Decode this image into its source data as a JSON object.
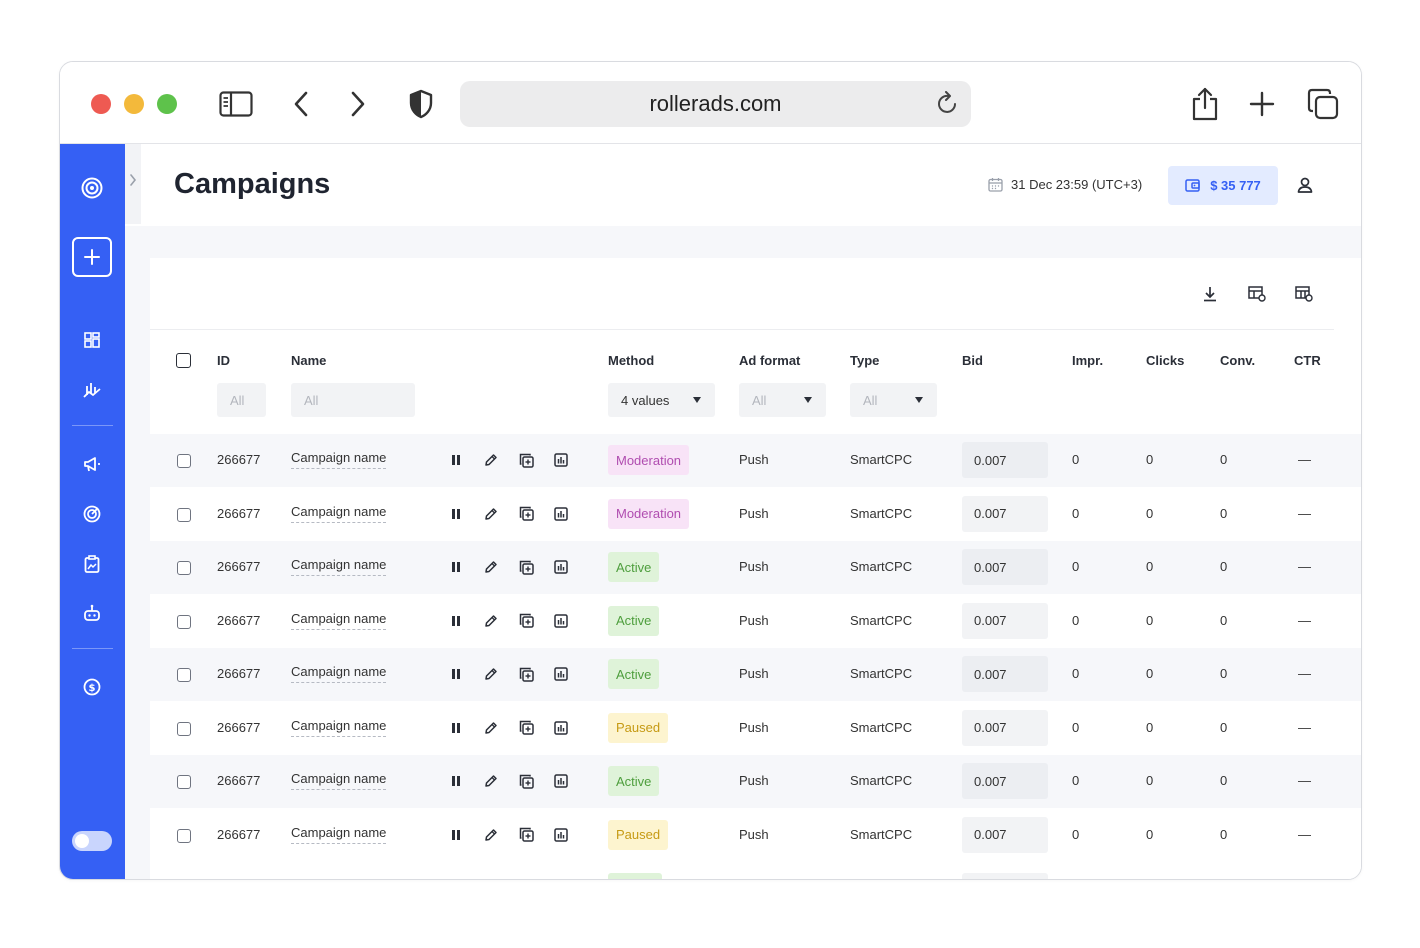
{
  "browser": {
    "url": "rollerads.com"
  },
  "page": {
    "title": "Campaigns"
  },
  "header": {
    "datetime": "31 Dec 23:59 (UTC+3)",
    "balance": "$ 35 777"
  },
  "columns": {
    "id": "ID",
    "name": "Name",
    "method": "Method",
    "ad_format": "Ad format",
    "type": "Type",
    "bid": "Bid",
    "impr": "Impr.",
    "clicks": "Clicks",
    "conv": "Conv.",
    "ctr": "CTR"
  },
  "filters": {
    "id": "All",
    "name": "All",
    "method": "4 values",
    "ad_format": "All",
    "type": "All"
  },
  "status_colors": {
    "Moderation": {
      "bg": "#f8e3f7",
      "fg": "#b04db0"
    },
    "Active": {
      "bg": "#dff3d9",
      "fg": "#4e9e3d"
    },
    "Paused": {
      "bg": "#fdf4cf",
      "fg": "#c69a14"
    }
  },
  "accent_color": "#3560f4",
  "rows": [
    {
      "id": "266677",
      "name": "Campaign name",
      "status": "Moderation",
      "ad_format": "Push",
      "type": "SmartCPC",
      "bid": "0.007",
      "impr": "0",
      "clicks": "0",
      "conv": "0",
      "ctr": "—"
    },
    {
      "id": "266677",
      "name": "Campaign name",
      "status": "Moderation",
      "ad_format": "Push",
      "type": "SmartCPC",
      "bid": "0.007",
      "impr": "0",
      "clicks": "0",
      "conv": "0",
      "ctr": "—"
    },
    {
      "id": "266677",
      "name": "Campaign name",
      "status": "Active",
      "ad_format": "Push",
      "type": "SmartCPC",
      "bid": "0.007",
      "impr": "0",
      "clicks": "0",
      "conv": "0",
      "ctr": "—"
    },
    {
      "id": "266677",
      "name": "Campaign name",
      "status": "Active",
      "ad_format": "Push",
      "type": "SmartCPC",
      "bid": "0.007",
      "impr": "0",
      "clicks": "0",
      "conv": "0",
      "ctr": "—"
    },
    {
      "id": "266677",
      "name": "Campaign name",
      "status": "Active",
      "ad_format": "Push",
      "type": "SmartCPC",
      "bid": "0.007",
      "impr": "0",
      "clicks": "0",
      "conv": "0",
      "ctr": "—"
    },
    {
      "id": "266677",
      "name": "Campaign name",
      "status": "Paused",
      "ad_format": "Push",
      "type": "SmartCPC",
      "bid": "0.007",
      "impr": "0",
      "clicks": "0",
      "conv": "0",
      "ctr": "—"
    },
    {
      "id": "266677",
      "name": "Campaign name",
      "status": "Active",
      "ad_format": "Push",
      "type": "SmartCPC",
      "bid": "0.007",
      "impr": "0",
      "clicks": "0",
      "conv": "0",
      "ctr": "—"
    },
    {
      "id": "266677",
      "name": "Campaign name",
      "status": "Paused",
      "ad_format": "Push",
      "type": "SmartCPC",
      "bid": "0.007",
      "impr": "0",
      "clicks": "0",
      "conv": "0",
      "ctr": "—"
    }
  ]
}
